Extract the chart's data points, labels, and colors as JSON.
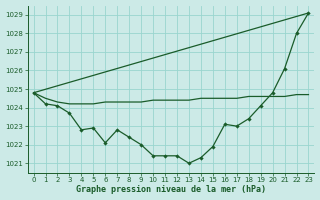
{
  "xlabel": "Graphe pression niveau de la mer (hPa)",
  "bg_color": "#cceae7",
  "grid_color": "#99d5cf",
  "line_color": "#1a5c2a",
  "ylim": [
    1020.5,
    1029.5
  ],
  "xlim": [
    -0.5,
    23.5
  ],
  "yticks": [
    1021,
    1022,
    1023,
    1024,
    1025,
    1026,
    1027,
    1028,
    1029
  ],
  "xticks": [
    0,
    1,
    2,
    3,
    4,
    5,
    6,
    7,
    8,
    9,
    10,
    11,
    12,
    13,
    14,
    15,
    16,
    17,
    18,
    19,
    20,
    21,
    22,
    23
  ],
  "series1_x": [
    0,
    1,
    2,
    3,
    4,
    5,
    6,
    7,
    8,
    9,
    10,
    11,
    12,
    13,
    14,
    15,
    16,
    17,
    18,
    19,
    20,
    21,
    22,
    23
  ],
  "series1_y": [
    1024.8,
    1024.2,
    1024.1,
    1023.7,
    1022.8,
    1022.9,
    1022.1,
    1022.8,
    1022.4,
    1022.0,
    1021.4,
    1021.4,
    1021.4,
    1021.0,
    1021.3,
    1021.9,
    1023.1,
    1023.0,
    1023.4,
    1024.1,
    1024.8,
    1026.1,
    1028.0,
    1029.1
  ],
  "series2_x": [
    0,
    1,
    2,
    3,
    4,
    5,
    6,
    7,
    8,
    9,
    10,
    11,
    12,
    13,
    14,
    15,
    16,
    17,
    18,
    19,
    20,
    21,
    22,
    23
  ],
  "series2_y": [
    1024.8,
    1024.5,
    1024.3,
    1024.2,
    1024.2,
    1024.2,
    1024.3,
    1024.3,
    1024.3,
    1024.3,
    1024.4,
    1024.4,
    1024.4,
    1024.4,
    1024.5,
    1024.5,
    1024.5,
    1024.5,
    1024.6,
    1024.6,
    1024.6,
    1024.6,
    1024.7,
    1024.7
  ],
  "series3_x": [
    0,
    23
  ],
  "series3_y": [
    1024.8,
    1029.1
  ]
}
